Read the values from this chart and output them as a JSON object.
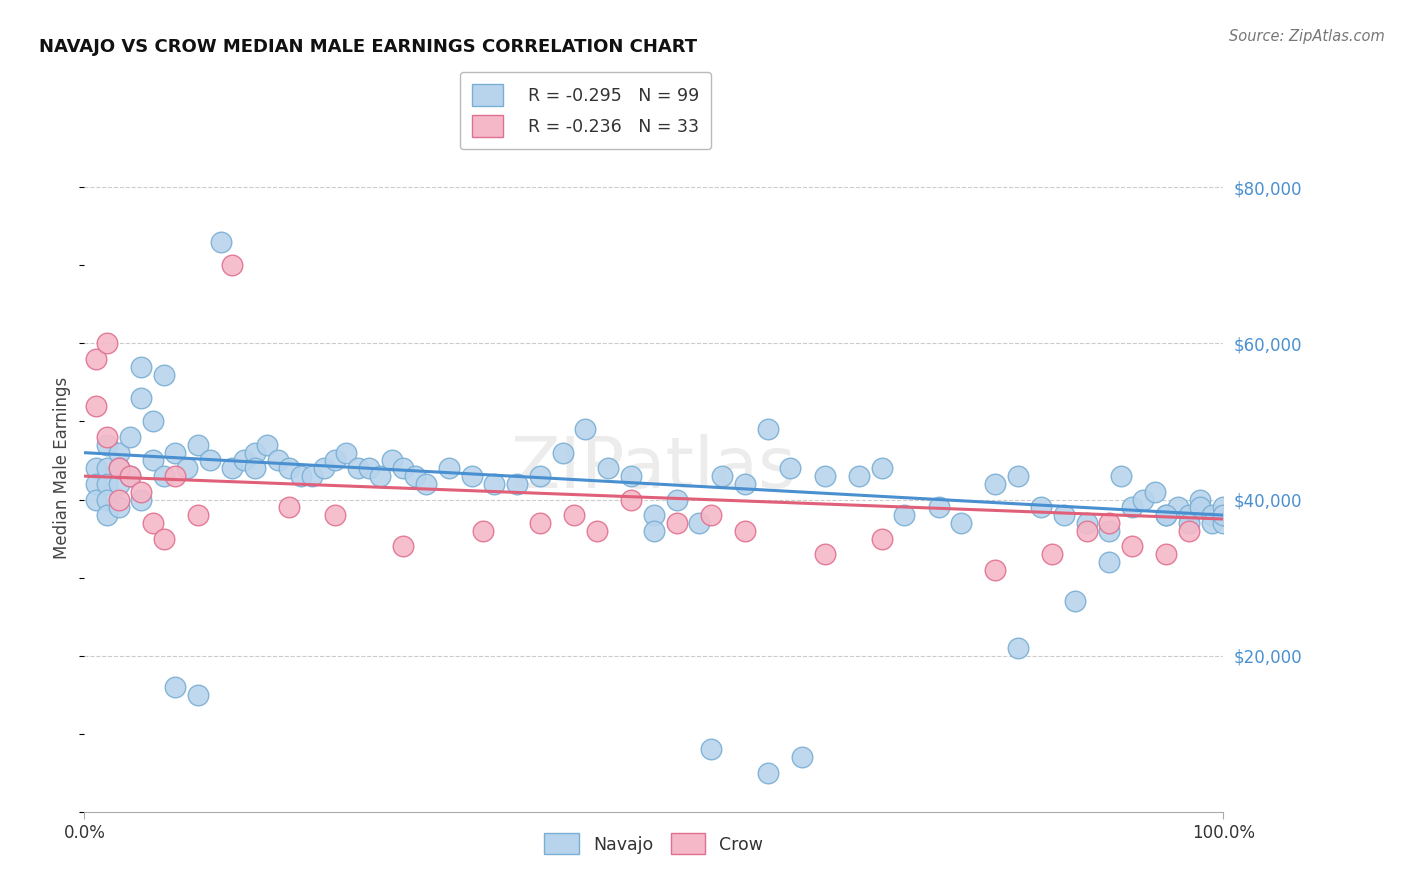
{
  "title": "NAVAJO VS CROW MEDIAN MALE EARNINGS CORRELATION CHART",
  "source": "Source: ZipAtlas.com",
  "ylabel": "Median Male Earnings",
  "xlim": [
    0.0,
    1.0
  ],
  "ylim": [
    0,
    88000
  ],
  "yticks": [
    20000,
    40000,
    60000,
    80000
  ],
  "ytick_labels": [
    "$20,000",
    "$40,000",
    "$60,000",
    "$80,000"
  ],
  "xticks": [
    0.0,
    1.0
  ],
  "xtick_labels": [
    "0.0%",
    "100.0%"
  ],
  "background_color": "#ffffff",
  "grid_color": "#cccccc",
  "navajo_color": "#b8d4ed",
  "navajo_edge_color": "#7aafd4",
  "crow_color": "#f5b8c8",
  "crow_edge_color": "#e07090",
  "navajo_line_color": "#4a90d0",
  "crow_line_color": "#e0607a",
  "right_label_color": "#4a90d0",
  "legend_navajo_R": "R = -0.295",
  "legend_navajo_N": "N = 99",
  "legend_crow_R": "R = -0.236",
  "legend_crow_N": "N = 33",
  "navajo_intercept": 46000,
  "navajo_slope": -8000,
  "crow_intercept": 43000,
  "crow_slope": -5500,
  "watermark": "ZIPatlas",
  "navajo_x": [
    0.01,
    0.01,
    0.01,
    0.02,
    0.02,
    0.02,
    0.02,
    0.02,
    0.03,
    0.03,
    0.03,
    0.03,
    0.04,
    0.04,
    0.05,
    0.05,
    0.05,
    0.06,
    0.06,
    0.07,
    0.07,
    0.08,
    0.09,
    0.1,
    0.11,
    0.12,
    0.13,
    0.14,
    0.15,
    0.15,
    0.16,
    0.17,
    0.18,
    0.19,
    0.2,
    0.21,
    0.22,
    0.23,
    0.24,
    0.25,
    0.26,
    0.27,
    0.28,
    0.29,
    0.3,
    0.32,
    0.34,
    0.36,
    0.38,
    0.4,
    0.42,
    0.44,
    0.46,
    0.48,
    0.5,
    0.5,
    0.52,
    0.54,
    0.56,
    0.58,
    0.6,
    0.62,
    0.65,
    0.68,
    0.7,
    0.72,
    0.75,
    0.77,
    0.8,
    0.82,
    0.84,
    0.86,
    0.88,
    0.9,
    0.91,
    0.92,
    0.93,
    0.94,
    0.95,
    0.96,
    0.97,
    0.97,
    0.98,
    0.98,
    0.99,
    0.99,
    1.0,
    1.0,
    1.0,
    1.0,
    0.08,
    0.1,
    0.55,
    0.6,
    0.63,
    0.82,
    0.87,
    0.9,
    0.95
  ],
  "navajo_y": [
    44000,
    42000,
    40000,
    47000,
    44000,
    42000,
    40000,
    38000,
    46000,
    44000,
    42000,
    39000,
    48000,
    43000,
    57000,
    53000,
    40000,
    50000,
    45000,
    56000,
    43000,
    46000,
    44000,
    47000,
    45000,
    73000,
    44000,
    45000,
    46000,
    44000,
    47000,
    45000,
    44000,
    43000,
    43000,
    44000,
    45000,
    46000,
    44000,
    44000,
    43000,
    45000,
    44000,
    43000,
    42000,
    44000,
    43000,
    42000,
    42000,
    43000,
    46000,
    49000,
    44000,
    43000,
    38000,
    36000,
    40000,
    37000,
    43000,
    42000,
    49000,
    44000,
    43000,
    43000,
    44000,
    38000,
    39000,
    37000,
    42000,
    43000,
    39000,
    38000,
    37000,
    36000,
    43000,
    39000,
    40000,
    41000,
    38000,
    39000,
    38000,
    37000,
    40000,
    39000,
    38000,
    37000,
    38000,
    39000,
    37000,
    38000,
    16000,
    15000,
    8000,
    5000,
    7000,
    21000,
    27000,
    32000,
    38000
  ],
  "crow_x": [
    0.01,
    0.01,
    0.02,
    0.02,
    0.03,
    0.03,
    0.04,
    0.05,
    0.06,
    0.07,
    0.08,
    0.1,
    0.13,
    0.18,
    0.22,
    0.28,
    0.35,
    0.4,
    0.43,
    0.45,
    0.48,
    0.52,
    0.55,
    0.58,
    0.65,
    0.7,
    0.8,
    0.85,
    0.88,
    0.9,
    0.92,
    0.95,
    0.97
  ],
  "crow_y": [
    58000,
    52000,
    60000,
    48000,
    44000,
    40000,
    43000,
    41000,
    37000,
    35000,
    43000,
    38000,
    70000,
    39000,
    38000,
    34000,
    36000,
    37000,
    38000,
    36000,
    40000,
    37000,
    38000,
    36000,
    33000,
    35000,
    31000,
    33000,
    36000,
    37000,
    34000,
    33000,
    36000
  ]
}
